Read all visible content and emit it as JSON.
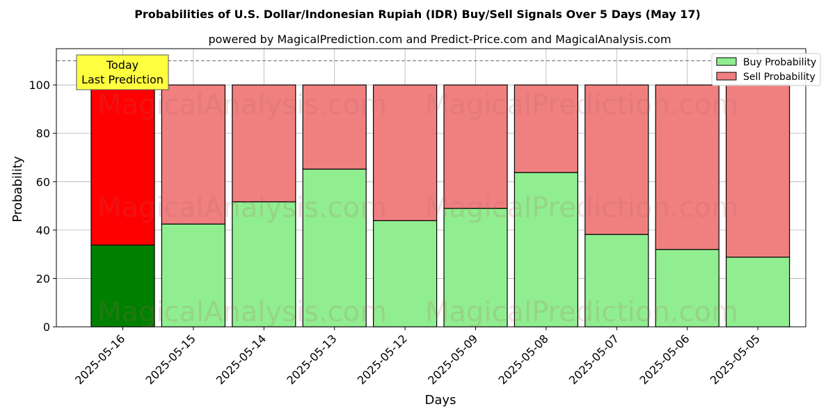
{
  "chart_data": {
    "type": "bar",
    "stacked": true,
    "title": "Probabilities of U.S. Dollar/Indonesian Rupiah (IDR) Buy/Sell Signals Over 5 Days (May 17)",
    "subtitle": "powered by MagicalPrediction.com and Predict-Price.com and MagicalAnalysis.com",
    "xlabel": "Days",
    "ylabel": "Probability",
    "ylim": [
      0,
      115
    ],
    "yticks": [
      0,
      20,
      40,
      60,
      80,
      100
    ],
    "reference_line": 110,
    "grid": true,
    "legend_position": "top-right",
    "categories": [
      "2025-05-16",
      "2025-05-15",
      "2025-05-14",
      "2025-05-13",
      "2025-05-12",
      "2025-05-09",
      "2025-05-08",
      "2025-05-07",
      "2025-05-06",
      "2025-05-05"
    ],
    "series": [
      {
        "name": "Buy Probability",
        "values": [
          33.8,
          42.5,
          51.7,
          65.2,
          43.9,
          49.0,
          63.8,
          38.2,
          32.0,
          28.8
        ],
        "color": "#90ee90",
        "highlight_color": "#008000"
      },
      {
        "name": "Sell Probability",
        "values": [
          66.2,
          57.5,
          48.3,
          34.8,
          56.1,
          51.0,
          36.2,
          61.8,
          68.0,
          71.2
        ],
        "color": "#f08080",
        "highlight_color": "#ff0000"
      }
    ],
    "highlight_index": 0,
    "annotation": {
      "line1": "Today",
      "line2": "Last Prediction",
      "bg": "#ffff40"
    },
    "watermarks": [
      "MagicalAnalysis.com",
      "MagicalPrediction.com"
    ]
  }
}
